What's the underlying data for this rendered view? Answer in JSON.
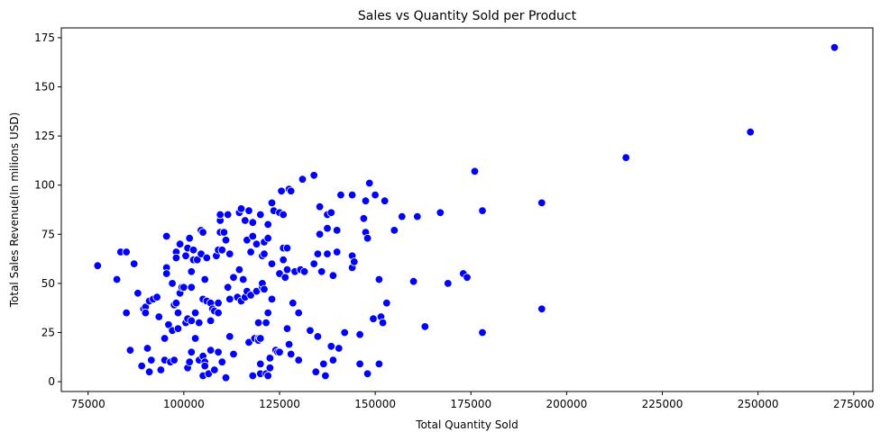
{
  "chart_data": {
    "type": "scatter",
    "title": "Sales vs Quantity Sold per Product",
    "xlabel": "Total Quantity Sold",
    "ylabel": "Total Sales Revenue(In milions USD)",
    "xlim": [
      68000,
      280000
    ],
    "ylim": [
      -5,
      180
    ],
    "xticks": [
      75000,
      100000,
      125000,
      150000,
      175000,
      200000,
      225000,
      250000,
      275000
    ],
    "xtick_labels": [
      "75000",
      "100000",
      "125000",
      "150000",
      "175000",
      "200000",
      "225000",
      "250000",
      "275000"
    ],
    "yticks": [
      0,
      25,
      50,
      75,
      100,
      125,
      150,
      175
    ],
    "ytick_labels": [
      "0",
      "25",
      "50",
      "75",
      "100",
      "125",
      "150",
      "175"
    ],
    "grid": false,
    "marker_color": "#0000ff",
    "marker_edge": "#ffffff",
    "points": [
      [
        77500,
        59
      ],
      [
        82500,
        52
      ],
      [
        83500,
        66
      ],
      [
        85000,
        66
      ],
      [
        85000,
        35
      ],
      [
        86000,
        16
      ],
      [
        87000,
        60
      ],
      [
        88000,
        45
      ],
      [
        89000,
        8
      ],
      [
        89500,
        37
      ],
      [
        90000,
        38
      ],
      [
        90000,
        35
      ],
      [
        90500,
        17
      ],
      [
        91000,
        41
      ],
      [
        91000,
        5
      ],
      [
        91500,
        11
      ],
      [
        92000,
        42
      ],
      [
        93000,
        43
      ],
      [
        93500,
        33
      ],
      [
        94000,
        6
      ],
      [
        95000,
        22
      ],
      [
        95000,
        11
      ],
      [
        95500,
        74
      ],
      [
        95500,
        58
      ],
      [
        95500,
        55
      ],
      [
        96000,
        29
      ],
      [
        96500,
        10
      ],
      [
        97000,
        26
      ],
      [
        97000,
        50
      ],
      [
        97500,
        39
      ],
      [
        97500,
        11
      ],
      [
        98000,
        66
      ],
      [
        98000,
        63
      ],
      [
        98000,
        40
      ],
      [
        98500,
        35
      ],
      [
        98500,
        27
      ],
      [
        99000,
        45
      ],
      [
        99000,
        70
      ],
      [
        99500,
        48
      ],
      [
        100000,
        48
      ],
      [
        100500,
        64
      ],
      [
        100500,
        30
      ],
      [
        101000,
        32
      ],
      [
        101000,
        7
      ],
      [
        101000,
        68
      ],
      [
        101500,
        10
      ],
      [
        101500,
        73
      ],
      [
        102000,
        56
      ],
      [
        102000,
        48
      ],
      [
        102000,
        15
      ],
      [
        102000,
        31
      ],
      [
        102500,
        62
      ],
      [
        102500,
        67
      ],
      [
        103000,
        35
      ],
      [
        103000,
        22
      ],
      [
        103500,
        62
      ],
      [
        104000,
        11
      ],
      [
        104000,
        30
      ],
      [
        104500,
        77
      ],
      [
        104500,
        65
      ],
      [
        105000,
        42
      ],
      [
        105000,
        76
      ],
      [
        105000,
        3
      ],
      [
        105000,
        13
      ],
      [
        105500,
        10
      ],
      [
        105500,
        8
      ],
      [
        105500,
        52
      ],
      [
        106000,
        41
      ],
      [
        106000,
        63
      ],
      [
        106500,
        4
      ],
      [
        107000,
        16
      ],
      [
        107000,
        40
      ],
      [
        107000,
        31
      ],
      [
        107500,
        37
      ],
      [
        108000,
        36
      ],
      [
        108000,
        6
      ],
      [
        108500,
        64
      ],
      [
        109000,
        15
      ],
      [
        109000,
        67
      ],
      [
        109000,
        40
      ],
      [
        109000,
        35
      ],
      [
        109500,
        82
      ],
      [
        109500,
        85
      ],
      [
        109500,
        76
      ],
      [
        110000,
        10
      ],
      [
        110000,
        67
      ],
      [
        110500,
        76
      ],
      [
        111000,
        2
      ],
      [
        111000,
        72
      ],
      [
        111500,
        85
      ],
      [
        111500,
        48
      ],
      [
        112000,
        65
      ],
      [
        112000,
        42
      ],
      [
        112000,
        23
      ],
      [
        113000,
        53
      ],
      [
        113000,
        14
      ],
      [
        114000,
        43
      ],
      [
        114500,
        86
      ],
      [
        114500,
        57
      ],
      [
        115000,
        88
      ],
      [
        115000,
        41
      ],
      [
        115500,
        52
      ],
      [
        116000,
        43
      ],
      [
        116000,
        82
      ],
      [
        116500,
        46
      ],
      [
        116500,
        72
      ],
      [
        117000,
        20
      ],
      [
        117000,
        87
      ],
      [
        117500,
        44
      ],
      [
        117500,
        66
      ],
      [
        118000,
        74
      ],
      [
        118000,
        81
      ],
      [
        118000,
        3
      ],
      [
        118500,
        22
      ],
      [
        119000,
        70
      ],
      [
        119000,
        46
      ],
      [
        119500,
        30
      ],
      [
        119500,
        22
      ],
      [
        119500,
        21
      ],
      [
        120000,
        4
      ],
      [
        120000,
        22
      ],
      [
        120000,
        85
      ],
      [
        120000,
        9
      ],
      [
        120500,
        48
      ],
      [
        120500,
        50
      ],
      [
        120500,
        64
      ],
      [
        121000,
        65
      ],
      [
        121000,
        47
      ],
      [
        121000,
        71
      ],
      [
        121500,
        4
      ],
      [
        121500,
        30
      ],
      [
        122000,
        3
      ],
      [
        122000,
        80
      ],
      [
        122000,
        35
      ],
      [
        122000,
        73
      ],
      [
        122500,
        12
      ],
      [
        122500,
        7
      ],
      [
        123000,
        91
      ],
      [
        123000,
        60
      ],
      [
        123000,
        42
      ],
      [
        123500,
        87
      ],
      [
        124000,
        16
      ],
      [
        124500,
        15
      ],
      [
        125000,
        15
      ],
      [
        125000,
        86
      ],
      [
        125000,
        55
      ],
      [
        125500,
        97
      ],
      [
        126000,
        85
      ],
      [
        126000,
        68
      ],
      [
        126000,
        62
      ],
      [
        126500,
        53
      ],
      [
        127000,
        57
      ],
      [
        127000,
        27
      ],
      [
        127000,
        68
      ],
      [
        127500,
        98
      ],
      [
        127500,
        19
      ],
      [
        128000,
        97
      ],
      [
        128000,
        14
      ],
      [
        128500,
        40
      ],
      [
        129000,
        56
      ],
      [
        130000,
        11
      ],
      [
        130000,
        35
      ],
      [
        130500,
        57
      ],
      [
        131000,
        103
      ],
      [
        131500,
        56
      ],
      [
        133000,
        26
      ],
      [
        134000,
        105
      ],
      [
        134000,
        60
      ],
      [
        134500,
        5
      ],
      [
        135000,
        23
      ],
      [
        135000,
        65
      ],
      [
        135500,
        89
      ],
      [
        135500,
        75
      ],
      [
        136000,
        56
      ],
      [
        136500,
        9
      ],
      [
        137000,
        3
      ],
      [
        137500,
        78
      ],
      [
        137500,
        85
      ],
      [
        137500,
        65
      ],
      [
        138500,
        86
      ],
      [
        138500,
        18
      ],
      [
        139000,
        54
      ],
      [
        139000,
        11
      ],
      [
        140000,
        77
      ],
      [
        140000,
        66
      ],
      [
        140500,
        17
      ],
      [
        141000,
        95
      ],
      [
        142000,
        25
      ],
      [
        144000,
        95
      ],
      [
        144000,
        58
      ],
      [
        144000,
        64
      ],
      [
        144500,
        61
      ],
      [
        146000,
        24
      ],
      [
        146000,
        9
      ],
      [
        147000,
        83
      ],
      [
        147500,
        76
      ],
      [
        147500,
        92
      ],
      [
        148000,
        4
      ],
      [
        148000,
        73
      ],
      [
        148500,
        101
      ],
      [
        149500,
        32
      ],
      [
        150000,
        95
      ],
      [
        151000,
        9
      ],
      [
        151000,
        52
      ],
      [
        151500,
        33
      ],
      [
        152000,
        30
      ],
      [
        152500,
        92
      ],
      [
        153000,
        40
      ],
      [
        155000,
        77
      ],
      [
        157000,
        84
      ],
      [
        160000,
        51
      ],
      [
        161000,
        84
      ],
      [
        163000,
        28
      ],
      [
        167000,
        86
      ],
      [
        169000,
        50
      ],
      [
        173000,
        55
      ],
      [
        174000,
        53
      ],
      [
        176000,
        107
      ],
      [
        178000,
        87
      ],
      [
        178000,
        25
      ],
      [
        193500,
        91
      ],
      [
        193500,
        37
      ],
      [
        215500,
        114
      ],
      [
        248000,
        127
      ],
      [
        270000,
        170
      ]
    ]
  }
}
